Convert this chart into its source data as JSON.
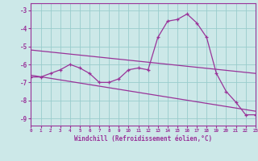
{
  "xlabel": "Windchill (Refroidissement éolien,°C)",
  "bg_color": "#cce8e8",
  "line_color": "#993399",
  "grid_color": "#99cccc",
  "hours": [
    0,
    1,
    2,
    3,
    4,
    5,
    6,
    7,
    8,
    9,
    10,
    11,
    12,
    13,
    14,
    15,
    16,
    17,
    18,
    19,
    20,
    21,
    22,
    23
  ],
  "windchill": [
    -6.7,
    -6.7,
    -6.5,
    -6.3,
    -6.0,
    -6.2,
    -6.5,
    -7.0,
    -7.0,
    -6.8,
    -6.3,
    -6.2,
    -6.3,
    -4.5,
    -3.6,
    -3.5,
    -3.2,
    -3.7,
    -4.5,
    -6.5,
    -7.5,
    -8.1,
    -8.8,
    -8.8
  ],
  "line1_x": [
    0,
    23
  ],
  "line1_y": [
    -5.2,
    -6.5
  ],
  "line2_x": [
    0,
    23
  ],
  "line2_y": [
    -6.6,
    -8.6
  ],
  "ylim": [
    -9.4,
    -2.6
  ],
  "xlim": [
    0,
    23
  ],
  "yticks": [
    -9,
    -8,
    -7,
    -6,
    -5,
    -4,
    -3
  ],
  "xticks": [
    0,
    1,
    2,
    3,
    4,
    5,
    6,
    7,
    8,
    9,
    10,
    11,
    12,
    13,
    14,
    15,
    16,
    17,
    18,
    19,
    20,
    21,
    22,
    23
  ]
}
